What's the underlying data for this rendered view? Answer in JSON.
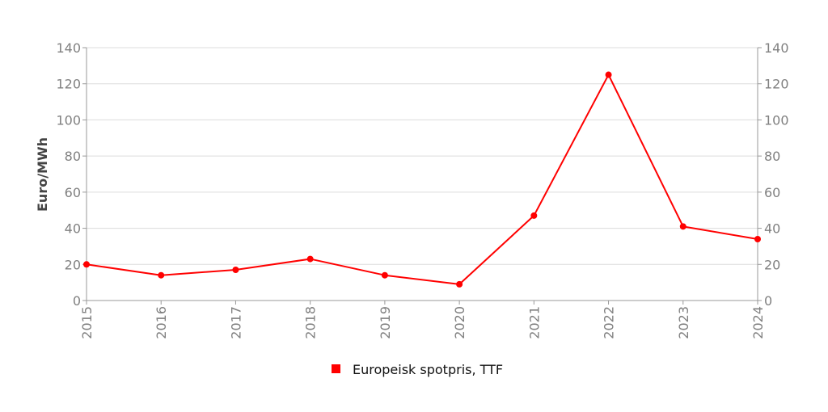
{
  "chart_data": {
    "type": "line",
    "title": "",
    "xlabel": "",
    "ylabel": "Euro/MWh",
    "categories": [
      "2015",
      "2016",
      "2017",
      "2018",
      "2019",
      "2020",
      "2021",
      "2022",
      "2023",
      "2024"
    ],
    "series": [
      {
        "name": "Europeisk spotpris, TTF",
        "color": "#ff0000",
        "values": [
          20,
          14,
          17,
          23,
          14,
          9,
          47,
          125,
          41,
          34
        ]
      }
    ],
    "ylim": [
      0,
      140
    ],
    "yticks": [
      "0",
      "20",
      "40",
      "60",
      "80",
      "100",
      "120",
      "140"
    ],
    "secondary_y_axis": true,
    "grid": true,
    "legend_position": "bottom-center"
  }
}
